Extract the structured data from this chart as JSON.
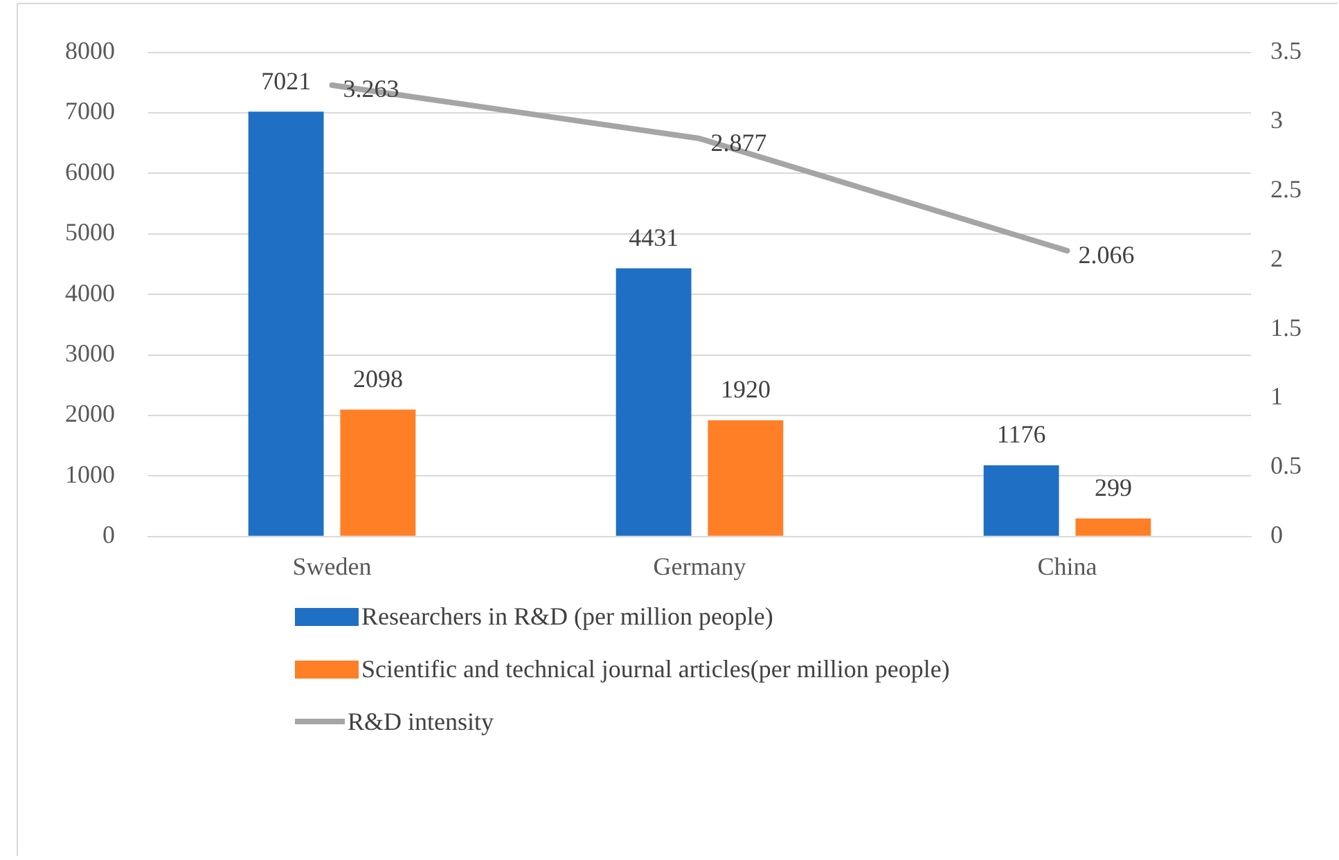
{
  "chart_data": {
    "type": "bar",
    "categories": [
      "Sweden",
      "Germany",
      "China"
    ],
    "series": [
      {
        "name": "Researchers in R&D (per million people)",
        "color": "#1f6fc5",
        "values": [
          7021,
          4431,
          1176
        ]
      },
      {
        "name": "Scientific and technical journal articles(per million people)",
        "color": "#ff7f27",
        "values": [
          2098,
          1920,
          299
        ]
      },
      {
        "name": "R&D intensity",
        "type": "line",
        "axis": "y2",
        "color": "#a5a5a5",
        "values": [
          3.263,
          2.877,
          2.066
        ]
      }
    ],
    "ylim": [
      0,
      8000
    ],
    "yticks": [
      0,
      1000,
      2000,
      3000,
      4000,
      5000,
      6000,
      7000,
      8000
    ],
    "y2lim": [
      0,
      3.5
    ],
    "y2ticks": [
      0,
      0.5,
      1,
      1.5,
      2,
      2.5,
      3,
      3.5
    ],
    "grid": "y",
    "legend": "bottom",
    "marker": "none",
    "data_labels": true
  }
}
